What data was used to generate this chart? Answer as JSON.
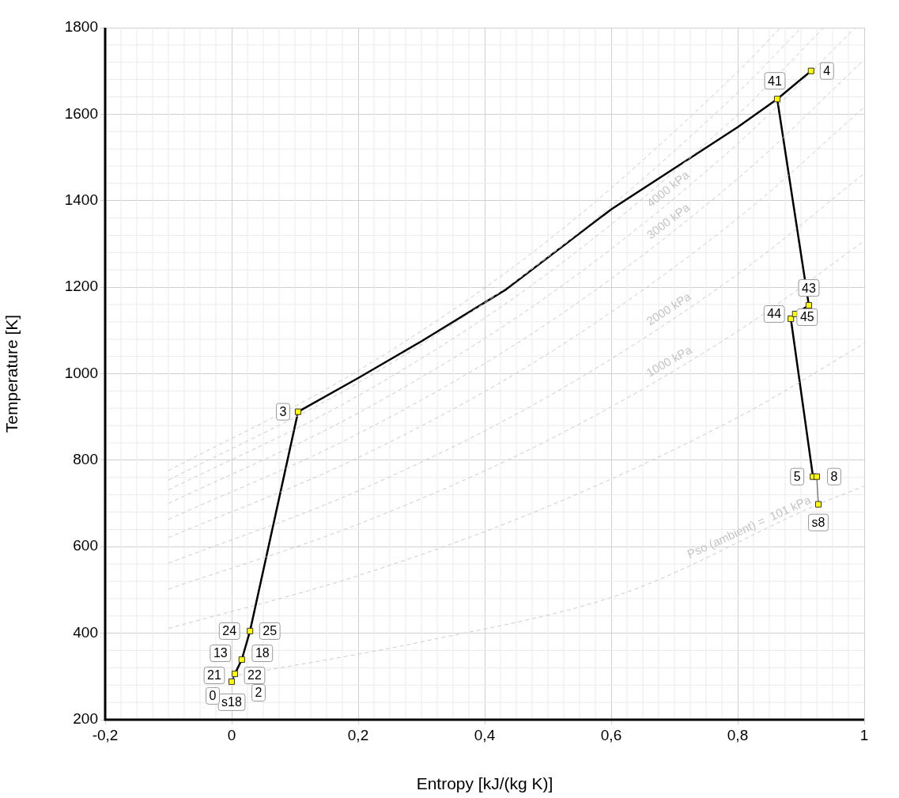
{
  "chart_data": {
    "type": "line",
    "xlabel": "Entropy [kJ/(kg K)]",
    "ylabel": "Temperature [K]",
    "xlim": [
      -0.2,
      1
    ],
    "ylim": [
      200,
      1800
    ],
    "xticks": [
      {
        "value": -0.2,
        "label": "-0,2"
      },
      0,
      {
        "value": 0.2,
        "label": "0,2"
      },
      {
        "value": 0.4,
        "label": "0,4"
      },
      {
        "value": 0.6,
        "label": "0,6"
      },
      {
        "value": 0.8,
        "label": "0,8"
      },
      1
    ],
    "yticks": [
      200,
      400,
      600,
      800,
      1000,
      1200,
      1400,
      1600,
      1800
    ],
    "grid": true,
    "series": [
      {
        "type": "line",
        "line_style": "dashed",
        "color": "#cccccc",
        "x": [
          -0.1,
          0.2,
          0.5,
          0.8,
          0.8675
        ],
        "values": [
          776,
          1007,
          1308,
          1698,
          1800
        ]
      },
      {
        "type": "line",
        "line_style": "dashed",
        "color": "#cccccc",
        "x": [
          -0.1,
          0.2,
          0.5,
          0.8,
          0.9005
        ],
        "values": [
          754,
          979,
          1270,
          1650,
          1800
        ]
      },
      {
        "type": "line",
        "line_style": "dashed",
        "color": "#cccccc",
        "x": [
          -0.1,
          0.2,
          0.5,
          0.8,
          0.936
        ],
        "values": [
          731,
          949,
          1232,
          1599,
          1800
        ]
      },
      {
        "type": "line",
        "name": "4000 kPa",
        "line_style": "dashed",
        "color": "#cccccc",
        "x": [
          -0.1,
          0.2,
          0.5,
          0.8,
          0.986
        ],
        "values": [
          700,
          909,
          1180,
          1532,
          1800
        ]
      },
      {
        "type": "line",
        "name": "3000 kPa",
        "line_style": "dashed",
        "color": "#cccccc",
        "x": [
          -0.1,
          0.2,
          0.5,
          0.8,
          1
        ],
        "values": [
          663,
          861,
          1117,
          1451,
          1726
        ]
      },
      {
        "type": "line",
        "line_style": "dashed",
        "color": "#cccccc",
        "x": [
          -0.1,
          0.2,
          0.5,
          0.8,
          1
        ],
        "values": [
          621,
          806,
          1046,
          1359,
          1616
        ]
      },
      {
        "type": "line",
        "name": "2000 kPa",
        "line_style": "dashed",
        "color": "#cccccc",
        "x": [
          -0.1,
          0.2,
          0.5,
          0.8,
          1
        ],
        "values": [
          562,
          729,
          947,
          1230,
          1463
        ]
      },
      {
        "type": "line",
        "name": "1000 kPa",
        "line_style": "dashed",
        "color": "#cccccc",
        "x": [
          -0.1,
          0.2,
          0.5,
          0.8,
          1
        ],
        "values": [
          502,
          652,
          846,
          1098,
          1307
        ]
      },
      {
        "type": "line",
        "line_style": "dashed",
        "color": "#cccccc",
        "x": [
          -0.1,
          0.2,
          0.5,
          0.8,
          1
        ],
        "values": [
          411,
          533,
          693,
          899,
          1070
        ]
      },
      {
        "type": "line",
        "name": "Pso (ambient) =  101 kPa",
        "line_style": "dashed",
        "color": "#cccccc",
        "x": [
          0,
          0.3,
          0.621,
          0.9275,
          1
        ],
        "values": [
          300,
          380,
          493,
          698,
          740
        ]
      },
      {
        "type": "line",
        "line_style": "solid",
        "color": "#000000",
        "x": [
          0.005,
          0.016,
          0.029,
          0.105,
          0.2,
          0.3,
          0.434,
          0.6,
          0.7,
          0.8,
          0.8625,
          0.916
        ],
        "values": [
          306,
          339,
          405,
          912,
          990,
          1075,
          1195,
          1380,
          1475,
          1570,
          1635,
          1700
        ]
      },
      {
        "type": "line",
        "line_style": "solid",
        "color": "#000000",
        "x": [
          0.8625,
          0.9125,
          0.891,
          0.884,
          0.919,
          0.925
        ],
        "values": [
          1635,
          1158,
          1138,
          1127,
          762,
          762
        ]
      },
      {
        "type": "line",
        "line_style": "solid",
        "color": "#808080",
        "x": [
          0.925,
          0.9275
        ],
        "values": [
          762,
          698
        ]
      },
      {
        "type": "line",
        "line_style": "solid",
        "color": "#0000ff",
        "x": [
          0,
          0.016
        ],
        "values": [
          288,
          339
        ]
      },
      {
        "type": "scatter",
        "marker": "square",
        "color": "#ffff00",
        "x": [
          0,
          0.005,
          0.016,
          0.029,
          0.105,
          0.8625,
          0.916,
          0.9125,
          0.884,
          0.891,
          0.919,
          0.925,
          0.9275
        ],
        "values": [
          288,
          306,
          339,
          405,
          912,
          1635,
          1700,
          1158,
          1127,
          1138,
          762,
          762,
          698
        ]
      }
    ],
    "annotations": [
      {
        "text": "s18",
        "x": 0,
        "y": 288
      },
      {
        "text": "0",
        "x": 0,
        "y": 288
      },
      {
        "text": "2",
        "x": 0.005,
        "y": 306
      },
      {
        "text": "21",
        "x": 0.005,
        "y": 306
      },
      {
        "text": "22",
        "x": 0.005,
        "y": 306
      },
      {
        "text": "13",
        "x": 0.016,
        "y": 339
      },
      {
        "text": "18",
        "x": 0.016,
        "y": 339
      },
      {
        "text": "24",
        "x": 0.029,
        "y": 405
      },
      {
        "text": "25",
        "x": 0.029,
        "y": 405
      },
      {
        "text": "3",
        "x": 0.105,
        "y": 912
      },
      {
        "text": "41",
        "x": 0.8625,
        "y": 1635
      },
      {
        "text": "4",
        "x": 0.916,
        "y": 1700
      },
      {
        "text": "43",
        "x": 0.9125,
        "y": 1158
      },
      {
        "text": "44",
        "x": 0.884,
        "y": 1127
      },
      {
        "text": "45",
        "x": 0.891,
        "y": 1138
      },
      {
        "text": "5",
        "x": 0.919,
        "y": 762
      },
      {
        "text": "8",
        "x": 0.925,
        "y": 762
      },
      {
        "text": "s8",
        "x": 0.9275,
        "y": 698
      }
    ]
  }
}
